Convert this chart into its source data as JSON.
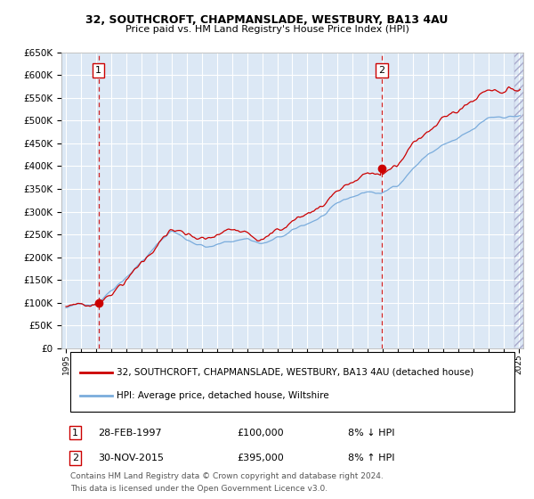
{
  "title": "32, SOUTHCROFT, CHAPMANSLADE, WESTBURY, BA13 4AU",
  "subtitle": "Price paid vs. HM Land Registry's House Price Index (HPI)",
  "legend_line1": "32, SOUTHCROFT, CHAPMANSLADE, WESTBURY, BA13 4AU (detached house)",
  "legend_line2": "HPI: Average price, detached house, Wiltshire",
  "footnote1": "Contains HM Land Registry data © Crown copyright and database right 2024.",
  "footnote2": "This data is licensed under the Open Government Licence v3.0.",
  "table_rows": [
    {
      "num": "1",
      "date": "28-FEB-1997",
      "price": "£100,000",
      "hpi": "8% ↓ HPI"
    },
    {
      "num": "2",
      "date": "30-NOV-2015",
      "price": "£395,000",
      "hpi": "8% ↑ HPI"
    }
  ],
  "sale1_year": 1997.16,
  "sale1_price": 100000,
  "sale2_year": 2015.92,
  "sale2_price": 395000,
  "ylim": [
    0,
    650000
  ],
  "xlim_start": 1994.7,
  "xlim_end": 2025.3,
  "plot_bg_color": "#dce8f5",
  "red_line_color": "#cc0000",
  "blue_line_color": "#7aacdc",
  "grid_color": "#ffffff",
  "dashed_color": "#cc0000"
}
